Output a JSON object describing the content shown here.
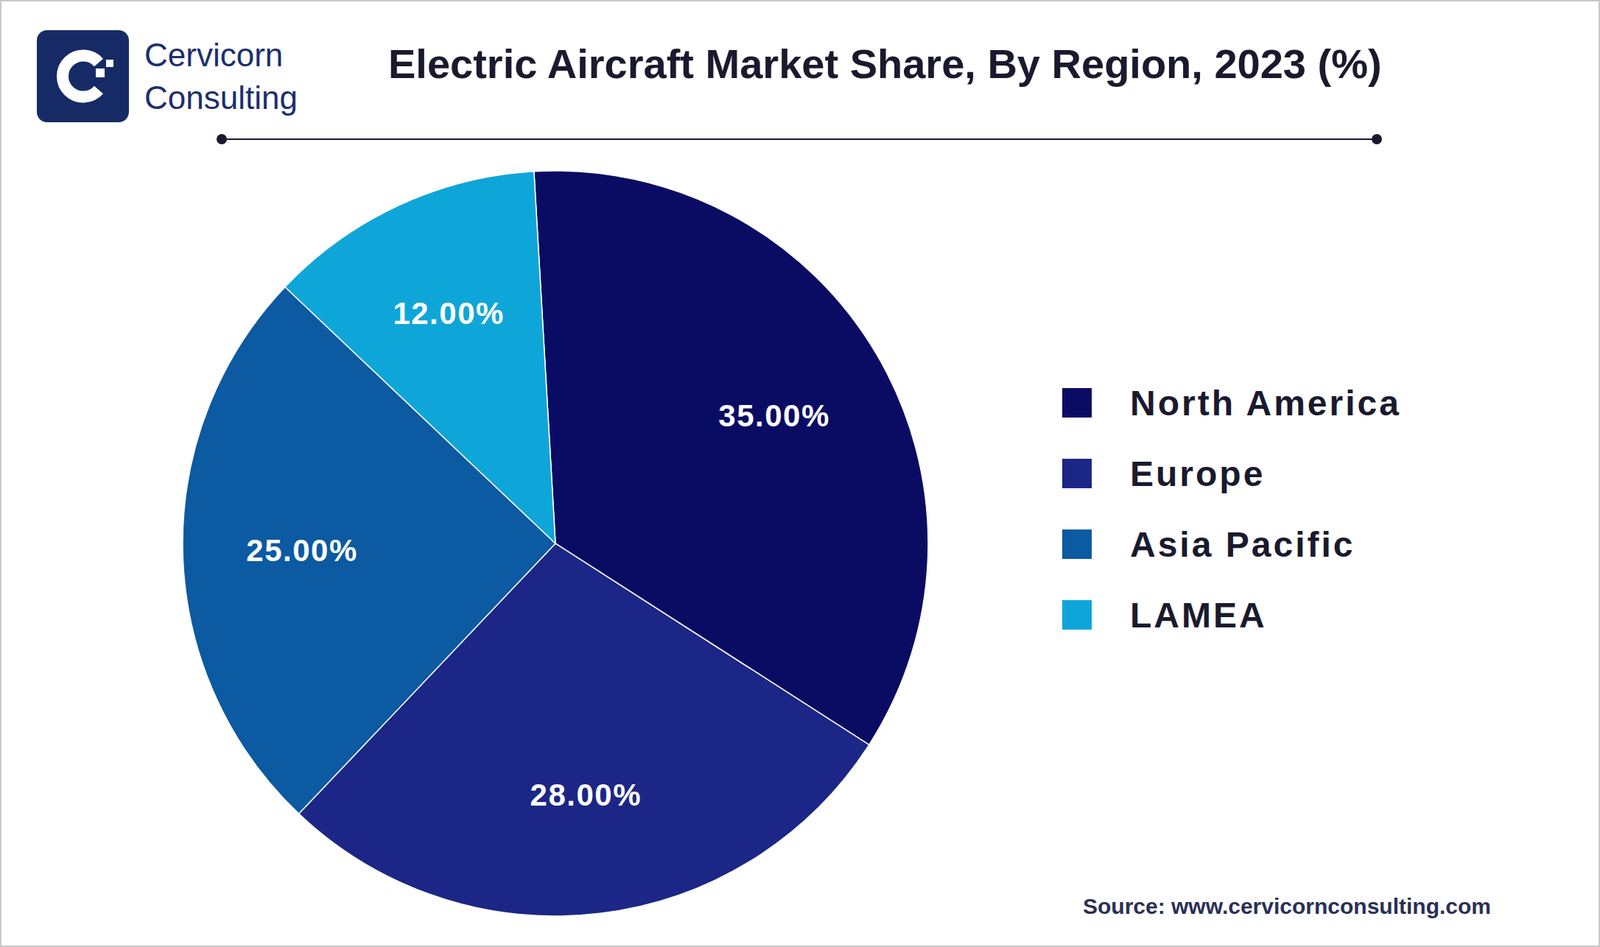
{
  "logo": [
    "Cervicorn",
    "Consulting"
  ],
  "chart_data": {
    "type": "pie",
    "title": "Electric Aircraft Market Share, By Region, 2023 (%)",
    "categories": [
      "North America",
      "Europe",
      "Asia Pacific",
      "LAMEA"
    ],
    "values": [
      35,
      28,
      25,
      12
    ],
    "value_labels": [
      "35.00%",
      "28.00%",
      "25.00%",
      "12.00%"
    ],
    "colors": [
      "#0a0c63",
      "#1c2686",
      "#0b5aa2",
      "#0ea6d9"
    ],
    "data_labels": true,
    "legend": "right",
    "annotations": [
      "Source: www.cervicornconsulting.com"
    ]
  }
}
